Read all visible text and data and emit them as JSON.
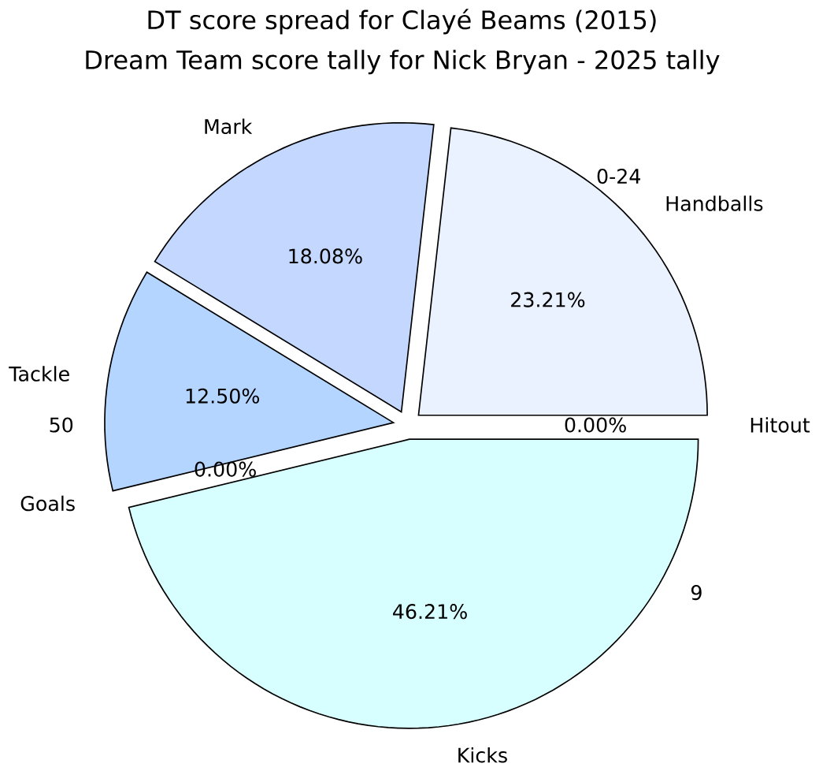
{
  "chart_data": {
    "type": "pie",
    "title": "Dream Team score tally for Nick Bryan - 2025 tally",
    "categories": [
      "Handballs",
      "Mark",
      "Tackle",
      "Goals",
      "Kicks",
      "Hitout"
    ],
    "values": [
      23.21,
      18.08,
      12.5,
      0.0,
      46.21,
      0.0
    ],
    "colors": [
      "#eaf1ff",
      "#c4d8ff",
      "#b3d5ff",
      "#e6eeff",
      "#d8ffff",
      "#bcd0f4"
    ],
    "value_labels": [
      "23.21%",
      "18.08%",
      "12.50%",
      "0.00%",
      "46.21%",
      "0.00%"
    ],
    "annotations": [
      "DT score spread for Clayé Beams (2015)",
      "0-24",
      "50",
      "9"
    ]
  }
}
